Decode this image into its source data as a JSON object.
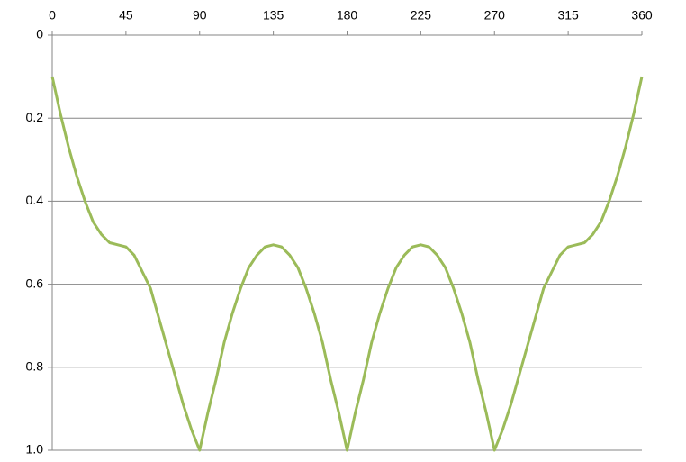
{
  "chart_data": {
    "type": "line",
    "x": [
      0,
      5,
      10,
      15,
      20,
      25,
      30,
      35,
      40,
      45,
      50,
      55,
      60,
      65,
      70,
      75,
      80,
      85,
      90,
      95,
      100,
      105,
      110,
      115,
      120,
      125,
      130,
      135,
      140,
      145,
      150,
      155,
      160,
      165,
      170,
      175,
      180,
      185,
      190,
      195,
      200,
      205,
      210,
      215,
      220,
      225,
      230,
      235,
      240,
      245,
      250,
      255,
      260,
      265,
      270,
      275,
      280,
      285,
      290,
      295,
      300,
      305,
      310,
      315,
      320,
      325,
      330,
      335,
      340,
      345,
      350,
      355,
      360
    ],
    "series": [
      {
        "color": "#9bbb59",
        "values": [
          0.1,
          0.19,
          0.27,
          0.34,
          0.4,
          0.45,
          0.48,
          0.5,
          0.505,
          0.51,
          0.53,
          0.57,
          0.61,
          0.68,
          0.75,
          0.82,
          0.89,
          0.95,
          1.0,
          0.91,
          0.83,
          0.74,
          0.67,
          0.61,
          0.56,
          0.53,
          0.51,
          0.505,
          0.51,
          0.53,
          0.56,
          0.61,
          0.67,
          0.74,
          0.83,
          0.91,
          1.0,
          0.91,
          0.83,
          0.74,
          0.67,
          0.61,
          0.56,
          0.53,
          0.51,
          0.505,
          0.51,
          0.53,
          0.56,
          0.61,
          0.67,
          0.74,
          0.83,
          0.91,
          1.0,
          0.95,
          0.89,
          0.82,
          0.75,
          0.68,
          0.61,
          0.57,
          0.53,
          0.51,
          0.505,
          0.5,
          0.48,
          0.45,
          0.4,
          0.34,
          0.27,
          0.19,
          0.1
        ]
      }
    ],
    "xlim": [
      0,
      360
    ],
    "xticks": [
      0,
      45,
      90,
      135,
      180,
      225,
      270,
      315,
      360
    ],
    "ylim": [
      0,
      1
    ],
    "yticks": [
      0,
      0.2,
      0.4,
      0.6,
      0.8,
      {
        "value": 1,
        "label": "1.0"
      }
    ],
    "y_inverted": true,
    "x_axis_position": "top",
    "grid": true
  }
}
